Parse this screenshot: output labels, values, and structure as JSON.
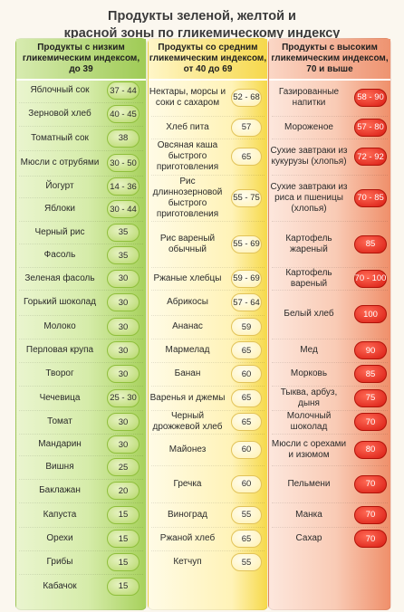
{
  "title_line1": "Продукты зеленой, желтой и",
  "title_line2": "красной зоны по гликемическому индексу",
  "columns": {
    "low": {
      "header": "Продукты с низким гликемическим индексом, до 39",
      "color": "#a7d15c",
      "items": [
        {
          "name": "Яблочный сок",
          "value": "37 - 44"
        },
        {
          "name": "Зерновой хлеб",
          "value": "40 - 45"
        },
        {
          "name": "Томатный сок",
          "value": "38"
        },
        {
          "name": "Мюсли с отрубями",
          "value": "30 - 50"
        },
        {
          "name": "Йогурт",
          "value": "14 - 36"
        },
        {
          "name": "Яблоки",
          "value": "30 - 44"
        },
        {
          "name": "Черный рис",
          "value": "35"
        },
        {
          "name": "Фасоль",
          "value": "35"
        },
        {
          "name": "Зеленая фасоль",
          "value": "30"
        },
        {
          "name": "Горький шоколад",
          "value": "30"
        },
        {
          "name": "Молоко",
          "value": "30"
        },
        {
          "name": "Перловая крупа",
          "value": "30"
        },
        {
          "name": "Творог",
          "value": "30"
        },
        {
          "name": "Чечевица",
          "value": "25 - 30"
        },
        {
          "name": "Томат",
          "value": "30"
        },
        {
          "name": "Мандарин",
          "value": "30"
        },
        {
          "name": "Вишня",
          "value": "25"
        },
        {
          "name": "Баклажан",
          "value": "20"
        },
        {
          "name": "Капуста",
          "value": "15"
        },
        {
          "name": "Орехи",
          "value": "15"
        },
        {
          "name": "Грибы",
          "value": "15"
        },
        {
          "name": "Кабачок",
          "value": "15"
        }
      ]
    },
    "mid": {
      "header": "Продукты со средним гликемическим индексом, от 40 до 69",
      "color": "#f6d94a",
      "items": [
        {
          "name": "Нектары, морсы и соки с сахаром",
          "value": "52 - 68"
        },
        {
          "name": "Хлеб пита",
          "value": "57"
        },
        {
          "name": "Овсяная каша быстрого приготовления",
          "value": "65"
        },
        {
          "name": "Рис длиннозерновой быстрого приготовления",
          "value": "55 - 75"
        },
        {
          "name": "Рис вареный обычный",
          "value": "55 - 69"
        },
        {
          "name": "Ржаные хлебцы",
          "value": "59 - 69"
        },
        {
          "name": "Абрикосы",
          "value": "57 - 64"
        },
        {
          "name": "Ананас",
          "value": "59"
        },
        {
          "name": "Мармелад",
          "value": "65"
        },
        {
          "name": "Банан",
          "value": "60"
        },
        {
          "name": "Варенья и джемы",
          "value": "65"
        },
        {
          "name": "Черный дрожжевой хлеб",
          "value": "65"
        },
        {
          "name": "Майонез",
          "value": "60"
        },
        {
          "name": "Гречка",
          "value": "60"
        },
        {
          "name": "Виноград",
          "value": "55"
        },
        {
          "name": "Ржаной хлеб",
          "value": "65"
        },
        {
          "name": "Кетчуп",
          "value": "55"
        }
      ]
    },
    "high": {
      "header": "Продукты с высоким гликемическим индексом, 70 и выше",
      "color": "#d81b12",
      "items": [
        {
          "name": "Газированные напитки",
          "value": "58 - 90"
        },
        {
          "name": "Мороженое",
          "value": "57 - 80"
        },
        {
          "name": "Сухие завтраки из кукурузы (хлопья)",
          "value": "72 - 92"
        },
        {
          "name": "Сухие завтраки из риса и пшеницы (хлопья)",
          "value": "70 - 85"
        },
        {
          "name": "Картофель жареный",
          "value": "85"
        },
        {
          "name": "Картофель вареный",
          "value": "70 - 100"
        },
        {
          "name": "Белый хлеб",
          "value": "100"
        },
        {
          "name": "Мед",
          "value": "90"
        },
        {
          "name": "Морковь",
          "value": "85"
        },
        {
          "name": "Тыква, арбуз, дыня",
          "value": "75"
        },
        {
          "name": "Молочный шоколад",
          "value": "70"
        },
        {
          "name": "Мюсли с орехами и изюмом",
          "value": "80"
        },
        {
          "name": "Пельмени",
          "value": "70"
        },
        {
          "name": "Манка",
          "value": "70"
        },
        {
          "name": "Сахар",
          "value": "70"
        }
      ]
    }
  }
}
